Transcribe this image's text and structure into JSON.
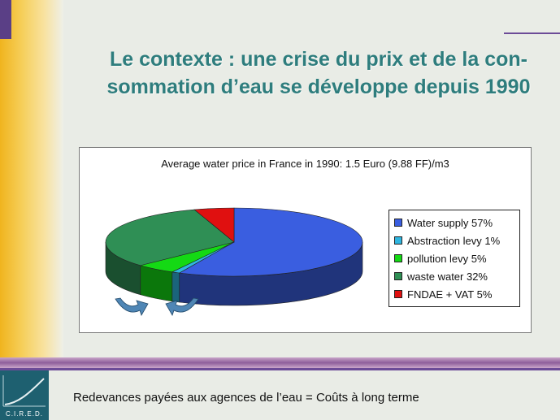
{
  "slide": {
    "title_line1": "Le contexte : une crise du prix et de la con-",
    "title_line2": "sommation d’eau se développe depuis 1990",
    "footer": "Redevances payées aux agences de l’eau = Coûts à long terme",
    "logo_text": "C.I.R.E.D."
  },
  "colors": {
    "water_supply": "#3a5ee0",
    "abstraction_levy": "#2fb6e0",
    "pollution_levy": "#14d914",
    "waste_water": "#2f8f55",
    "fndae_vat": "#e01010",
    "arrow": "#4f86b5"
  },
  "chart_data": {
    "type": "pie",
    "title": "Average water price in France in 1990: 1.5 Euro (9.88 FF)/m3",
    "legend_position": "right",
    "series": [
      {
        "label": "Water supply 57%",
        "value": 57
      },
      {
        "label": "Abstraction levy 1%",
        "value": 1
      },
      {
        "label": "pollution levy 5%",
        "value": 5
      },
      {
        "label": "waste water 32%",
        "value": 32
      },
      {
        "label": "FNDAE + VAT 5%",
        "value": 5
      }
    ]
  }
}
